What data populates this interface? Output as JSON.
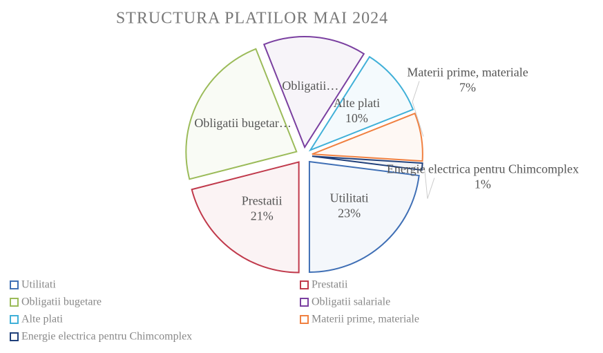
{
  "chart_data": {
    "type": "pie",
    "title": "STRUCTURA PLATILOR MAI 2024",
    "categories": [
      "Utilitati",
      "Prestatii",
      "Obligatii bugetare",
      "Obligatii salariale",
      "Alte plati",
      "Materii prime, materiale",
      "Energie electrica pentru Chimcomplex"
    ],
    "values": [
      23,
      21,
      23,
      15,
      10,
      7,
      1
    ],
    "slice_labels": [
      "Utilitati",
      "Prestatii",
      "Obligatii bugetar…",
      "Obligatii…",
      "Alte plati",
      "Materii prime, materiale",
      "Energie electrica pentru Chimcomplex"
    ],
    "value_labels": [
      "23%",
      "21%",
      null,
      null,
      "10%",
      "7%",
      "1%"
    ],
    "colors": [
      "#3f6fb5",
      "#c0394b",
      "#9bbb59",
      "#7a3fa0",
      "#40b0d8",
      "#f08040",
      "#1f3f7a"
    ],
    "legend": "bottom"
  }
}
